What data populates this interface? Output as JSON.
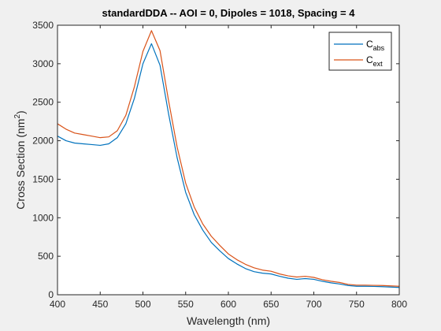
{
  "chart_data": {
    "type": "line",
    "title": "standardDDA -- AOI = 0, Dipoles = 1018, Spacing = 4",
    "xlabel": "Wavelength (nm)",
    "ylabel_main": "Cross Section (nm",
    "ylabel_sup": "2",
    "ylabel_close": ")",
    "xlim": [
      400,
      800
    ],
    "ylim": [
      0,
      3500
    ],
    "xticks": [
      400,
      450,
      500,
      550,
      600,
      650,
      700,
      750,
      800
    ],
    "yticks": [
      0,
      500,
      1000,
      1500,
      2000,
      2500,
      3000,
      3500
    ],
    "grid": false,
    "legend_position": "top-right",
    "series": [
      {
        "legend_base": "C",
        "legend_sub": "abs",
        "color": "#0072BD",
        "x": [
          400,
          410,
          420,
          430,
          440,
          450,
          460,
          470,
          480,
          490,
          500,
          510,
          520,
          530,
          540,
          550,
          560,
          570,
          580,
          590,
          600,
          610,
          620,
          630,
          640,
          650,
          660,
          670,
          680,
          690,
          700,
          710,
          720,
          730,
          740,
          750,
          760,
          770,
          780,
          790,
          800
        ],
        "values": [
          2060,
          2000,
          1970,
          1960,
          1950,
          1940,
          1960,
          2040,
          2220,
          2550,
          3000,
          3260,
          2980,
          2350,
          1780,
          1330,
          1040,
          840,
          680,
          570,
          470,
          400,
          340,
          300,
          280,
          270,
          240,
          215,
          200,
          210,
          200,
          175,
          155,
          140,
          120,
          110,
          110,
          108,
          105,
          100,
          95
        ]
      },
      {
        "legend_base": "C",
        "legend_sub": "ext",
        "color": "#D95319",
        "x": [
          400,
          410,
          420,
          430,
          440,
          450,
          460,
          470,
          480,
          490,
          500,
          510,
          520,
          530,
          540,
          550,
          560,
          570,
          580,
          590,
          600,
          610,
          620,
          630,
          640,
          650,
          660,
          670,
          680,
          690,
          700,
          710,
          720,
          730,
          740,
          750,
          760,
          770,
          780,
          790,
          800
        ],
        "values": [
          2220,
          2150,
          2100,
          2080,
          2060,
          2040,
          2050,
          2130,
          2330,
          2700,
          3160,
          3430,
          3170,
          2520,
          1920,
          1450,
          1140,
          920,
          760,
          640,
          530,
          455,
          395,
          350,
          320,
          305,
          270,
          245,
          230,
          240,
          225,
          195,
          175,
          160,
          135,
          125,
          125,
          122,
          120,
          115,
          110
        ]
      }
    ]
  }
}
